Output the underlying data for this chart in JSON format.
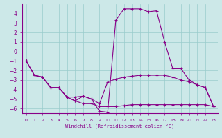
{
  "xlabel": "Windchill (Refroidissement éolien,°C)",
  "bg_color": "#cce8e8",
  "grid_color": "#99cccc",
  "line_color": "#880088",
  "xlim": [
    -0.5,
    23.5
  ],
  "ylim": [
    -6.5,
    5.0
  ],
  "xticks": [
    0,
    1,
    2,
    3,
    4,
    5,
    6,
    7,
    8,
    9,
    10,
    11,
    12,
    13,
    14,
    15,
    16,
    17,
    18,
    19,
    20,
    21,
    22,
    23
  ],
  "yticks": [
    -6,
    -5,
    -4,
    -3,
    -2,
    -1,
    0,
    1,
    2,
    3,
    4
  ],
  "line1_x": [
    0,
    1,
    2,
    3,
    4,
    5,
    6,
    7,
    8,
    9,
    10,
    11,
    12,
    13,
    14,
    15,
    16,
    17,
    18,
    19,
    20,
    21,
    22,
    23
  ],
  "line1_y": [
    -1.0,
    -2.5,
    -2.7,
    -3.8,
    -3.8,
    -4.8,
    -5.2,
    -4.7,
    -5.0,
    -6.3,
    -6.4,
    3.3,
    4.5,
    4.5,
    4.5,
    4.2,
    4.3,
    1.0,
    -1.8,
    -1.8,
    -3.0,
    -3.5,
    -3.8,
    -5.8
  ],
  "line2_x": [
    0,
    1,
    2,
    3,
    4,
    5,
    6,
    7,
    8,
    9,
    10,
    11,
    12,
    13,
    14,
    15,
    16,
    17,
    18,
    19,
    20,
    21,
    22,
    23
  ],
  "line2_y": [
    -1.0,
    -2.5,
    -2.7,
    -3.8,
    -3.8,
    -4.8,
    -5.2,
    -5.5,
    -5.5,
    -5.8,
    -5.8,
    -5.8,
    -5.7,
    -5.6,
    -5.6,
    -5.6,
    -5.6,
    -5.6,
    -5.6,
    -5.6,
    -5.6,
    -5.6,
    -5.6,
    -5.8
  ],
  "line3_x": [
    0,
    1,
    2,
    3,
    4,
    5,
    6,
    7,
    8,
    9,
    10,
    11,
    12,
    13,
    14,
    15,
    16,
    17,
    18,
    19,
    20,
    21,
    22,
    23
  ],
  "line3_y": [
    -1.0,
    -2.5,
    -2.7,
    -3.8,
    -3.8,
    -4.8,
    -4.8,
    -4.7,
    -5.0,
    -5.5,
    -3.2,
    -2.9,
    -2.7,
    -2.6,
    -2.5,
    -2.5,
    -2.5,
    -2.5,
    -2.7,
    -3.0,
    -3.2,
    -3.5,
    -3.8,
    -5.8
  ]
}
